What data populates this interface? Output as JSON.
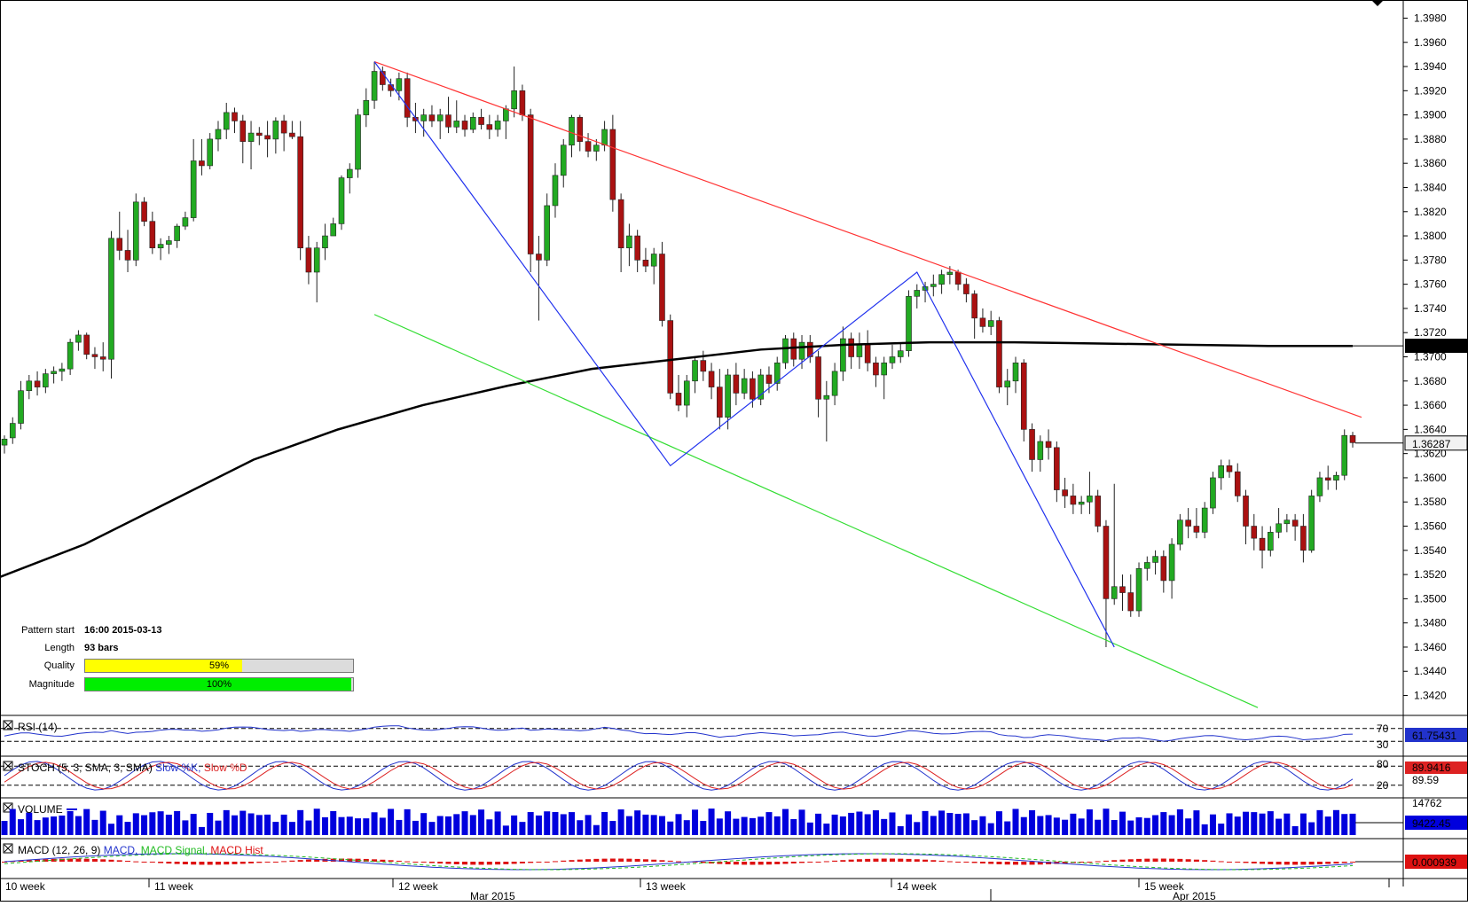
{
  "chart_data": {
    "type": "candlestick",
    "instrument_last_price": "1.36287",
    "ma_label": "1.37091",
    "y_ticks": [
      "1.3980",
      "1.3960",
      "1.3940",
      "1.3920",
      "1.3900",
      "1.3880",
      "1.3860",
      "1.3840",
      "1.3820",
      "1.3800",
      "1.3780",
      "1.3760",
      "1.3740",
      "1.3720",
      "1.3700",
      "1.3680",
      "1.3660",
      "1.3640",
      "1.3620",
      "1.3600",
      "1.3580",
      "1.3560",
      "1.3540",
      "1.3520",
      "1.3500",
      "1.3480",
      "1.3460",
      "1.3440",
      "1.3420"
    ],
    "ylim": [
      1.3405,
      1.3995
    ],
    "week_labels": [
      "10 week",
      "11 week",
      "12 week",
      "13 week",
      "14 week",
      "15 week"
    ],
    "month_labels": [
      "Mar 2015",
      "Apr 2015"
    ],
    "ohlc": [
      [
        1.3627,
        1.3635,
        1.362,
        1.3632
      ],
      [
        1.3633,
        1.365,
        1.3628,
        1.3645
      ],
      [
        1.3645,
        1.368,
        1.364,
        1.3672
      ],
      [
        1.3672,
        1.3685,
        1.3665,
        1.368
      ],
      [
        1.368,
        1.3688,
        1.3668,
        1.3675
      ],
      [
        1.3675,
        1.369,
        1.367,
        1.3686
      ],
      [
        1.3686,
        1.3692,
        1.3678,
        1.3688
      ],
      [
        1.3688,
        1.3695,
        1.368,
        1.369
      ],
      [
        1.369,
        1.3715,
        1.3685,
        1.3712
      ],
      [
        1.3712,
        1.3722,
        1.3705,
        1.3718
      ],
      [
        1.3718,
        1.372,
        1.3698,
        1.3702
      ],
      [
        1.3702,
        1.3708,
        1.369,
        1.37
      ],
      [
        1.37,
        1.3712,
        1.3688,
        1.3698
      ],
      [
        1.3698,
        1.3804,
        1.3682,
        1.3798
      ],
      [
        1.3798,
        1.382,
        1.378,
        1.3788
      ],
      [
        1.3788,
        1.3805,
        1.377,
        1.378
      ],
      [
        1.378,
        1.3835,
        1.3775,
        1.3828
      ],
      [
        1.3828,
        1.3832,
        1.3808,
        1.3812
      ],
      [
        1.3812,
        1.382,
        1.3785,
        1.379
      ],
      [
        1.379,
        1.3798,
        1.378,
        1.3793
      ],
      [
        1.3793,
        1.38,
        1.3785,
        1.3796
      ],
      [
        1.3796,
        1.381,
        1.379,
        1.3808
      ],
      [
        1.3808,
        1.382,
        1.3805,
        1.3815
      ],
      [
        1.3815,
        1.388,
        1.3812,
        1.3862
      ],
      [
        1.3862,
        1.388,
        1.385,
        1.3858
      ],
      [
        1.3858,
        1.3885,
        1.3855,
        1.388
      ],
      [
        1.388,
        1.3895,
        1.387,
        1.3888
      ],
      [
        1.3888,
        1.391,
        1.388,
        1.3902
      ],
      [
        1.3902,
        1.3906,
        1.3885,
        1.3895
      ],
      [
        1.3895,
        1.39,
        1.386,
        1.3878
      ],
      [
        1.3878,
        1.3895,
        1.3855,
        1.3885
      ],
      [
        1.3885,
        1.389,
        1.3875,
        1.3883
      ],
      [
        1.3883,
        1.3895,
        1.3865,
        1.388
      ],
      [
        1.388,
        1.3898,
        1.3868,
        1.3895
      ],
      [
        1.3895,
        1.39,
        1.387,
        1.3885
      ],
      [
        1.3885,
        1.3895,
        1.388,
        1.3882
      ],
      [
        1.3882,
        1.3895,
        1.378,
        1.379
      ],
      [
        1.379,
        1.38,
        1.376,
        1.377
      ],
      [
        1.377,
        1.3795,
        1.3745,
        1.379
      ],
      [
        1.379,
        1.381,
        1.378,
        1.38
      ],
      [
        1.38,
        1.3815,
        1.38,
        1.381
      ],
      [
        1.381,
        1.385,
        1.3805,
        1.3848
      ],
      [
        1.3848,
        1.386,
        1.3835,
        1.3855
      ],
      [
        1.3855,
        1.3905,
        1.3848,
        1.39
      ],
      [
        1.39,
        1.3922,
        1.389,
        1.3912
      ],
      [
        1.3912,
        1.3944,
        1.3905,
        1.3936
      ],
      [
        1.3936,
        1.394,
        1.392,
        1.3925
      ],
      [
        1.3925,
        1.393,
        1.3915,
        1.392
      ],
      [
        1.392,
        1.3935,
        1.3912,
        1.393
      ],
      [
        1.393,
        1.3935,
        1.389,
        1.3898
      ],
      [
        1.3898,
        1.391,
        1.3885,
        1.3895
      ],
      [
        1.3895,
        1.3905,
        1.3882,
        1.39
      ],
      [
        1.39,
        1.3908,
        1.389,
        1.3895
      ],
      [
        1.3895,
        1.3905,
        1.388,
        1.39
      ],
      [
        1.39,
        1.3915,
        1.3885,
        1.389
      ],
      [
        1.389,
        1.3912,
        1.3885,
        1.3895
      ],
      [
        1.3895,
        1.39,
        1.3882,
        1.3888
      ],
      [
        1.3888,
        1.3902,
        1.3885,
        1.3898
      ],
      [
        1.3898,
        1.3905,
        1.3888,
        1.3892
      ],
      [
        1.3892,
        1.39,
        1.388,
        1.3888
      ],
      [
        1.3888,
        1.39,
        1.3882,
        1.3895
      ],
      [
        1.3895,
        1.3908,
        1.388,
        1.3905
      ],
      [
        1.3905,
        1.394,
        1.3898,
        1.392
      ],
      [
        1.392,
        1.3925,
        1.3895,
        1.39
      ],
      [
        1.39,
        1.3905,
        1.377,
        1.3785
      ],
      [
        1.3785,
        1.38,
        1.373,
        1.378
      ],
      [
        1.378,
        1.3835,
        1.3775,
        1.3825
      ],
      [
        1.3825,
        1.386,
        1.3815,
        1.385
      ],
      [
        1.385,
        1.388,
        1.384,
        1.3875
      ],
      [
        1.3875,
        1.39,
        1.3865,
        1.3898
      ],
      [
        1.3898,
        1.39,
        1.387,
        1.3878
      ],
      [
        1.3878,
        1.3885,
        1.3865,
        1.387
      ],
      [
        1.387,
        1.388,
        1.3862,
        1.3875
      ],
      [
        1.3875,
        1.3895,
        1.387,
        1.3888
      ],
      [
        1.3888,
        1.39,
        1.382,
        1.383
      ],
      [
        1.383,
        1.3835,
        1.377,
        1.379
      ],
      [
        1.379,
        1.381,
        1.3775,
        1.38
      ],
      [
        1.38,
        1.3805,
        1.377,
        1.378
      ],
      [
        1.378,
        1.379,
        1.377,
        1.3775
      ],
      [
        1.3775,
        1.379,
        1.376,
        1.3785
      ],
      [
        1.3785,
        1.3795,
        1.3725,
        1.373
      ],
      [
        1.373,
        1.3735,
        1.3665,
        1.367
      ],
      [
        1.367,
        1.3685,
        1.3655,
        1.366
      ],
      [
        1.366,
        1.3685,
        1.365,
        1.368
      ],
      [
        1.368,
        1.37,
        1.367,
        1.3697
      ],
      [
        1.3697,
        1.3705,
        1.368,
        1.3688
      ],
      [
        1.3688,
        1.3695,
        1.3665,
        1.3675
      ],
      [
        1.3675,
        1.369,
        1.364,
        1.365
      ],
      [
        1.365,
        1.369,
        1.364,
        1.3685
      ],
      [
        1.3685,
        1.3695,
        1.366,
        1.367
      ],
      [
        1.367,
        1.369,
        1.3665,
        1.3682
      ],
      [
        1.3682,
        1.3688,
        1.3658,
        1.3665
      ],
      [
        1.3665,
        1.369,
        1.366,
        1.3685
      ],
      [
        1.3685,
        1.3692,
        1.367,
        1.3678
      ],
      [
        1.3678,
        1.37,
        1.3672,
        1.3695
      ],
      [
        1.3695,
        1.3718,
        1.369,
        1.3715
      ],
      [
        1.3715,
        1.372,
        1.3692,
        1.3698
      ],
      [
        1.3698,
        1.3718,
        1.369,
        1.3712
      ],
      [
        1.3712,
        1.3718,
        1.3695,
        1.37
      ],
      [
        1.37,
        1.3705,
        1.365,
        1.3665
      ],
      [
        1.3665,
        1.368,
        1.363,
        1.3668
      ],
      [
        1.3668,
        1.3695,
        1.366,
        1.3688
      ],
      [
        1.3688,
        1.3725,
        1.368,
        1.3715
      ],
      [
        1.3715,
        1.372,
        1.369,
        1.37
      ],
      [
        1.37,
        1.372,
        1.369,
        1.371
      ],
      [
        1.371,
        1.3722,
        1.3688,
        1.3695
      ],
      [
        1.3695,
        1.37,
        1.3675,
        1.3685
      ],
      [
        1.3685,
        1.37,
        1.3665,
        1.3695
      ],
      [
        1.3695,
        1.371,
        1.369,
        1.37
      ],
      [
        1.37,
        1.3712,
        1.3695,
        1.3705
      ],
      [
        1.3705,
        1.3755,
        1.37,
        1.375
      ],
      [
        1.375,
        1.376,
        1.374,
        1.3755
      ],
      [
        1.3755,
        1.3762,
        1.3745,
        1.3758
      ],
      [
        1.3758,
        1.3768,
        1.375,
        1.376
      ],
      [
        1.376,
        1.3772,
        1.3752,
        1.3768
      ],
      [
        1.3768,
        1.3775,
        1.376,
        1.377
      ],
      [
        1.377,
        1.3772,
        1.3755,
        1.376
      ],
      [
        1.376,
        1.3765,
        1.3745,
        1.3752
      ],
      [
        1.3752,
        1.3755,
        1.3715,
        1.3732
      ],
      [
        1.3732,
        1.374,
        1.372,
        1.3725
      ],
      [
        1.3725,
        1.3738,
        1.3718,
        1.373
      ],
      [
        1.373,
        1.3733,
        1.367,
        1.3675
      ],
      [
        1.3675,
        1.369,
        1.366,
        1.368
      ],
      [
        1.368,
        1.37,
        1.367,
        1.3695
      ],
      [
        1.3695,
        1.3698,
        1.363,
        1.364
      ],
      [
        1.364,
        1.3645,
        1.3605,
        1.3615
      ],
      [
        1.3615,
        1.3635,
        1.3605,
        1.363
      ],
      [
        1.363,
        1.364,
        1.3615,
        1.3625
      ],
      [
        1.3625,
        1.363,
        1.358,
        1.359
      ],
      [
        1.359,
        1.36,
        1.3575,
        1.3585
      ],
      [
        1.3585,
        1.3595,
        1.357,
        1.3578
      ],
      [
        1.3578,
        1.3585,
        1.357,
        1.358
      ],
      [
        1.358,
        1.3605,
        1.357,
        1.3585
      ],
      [
        1.3585,
        1.359,
        1.3555,
        1.356
      ],
      [
        1.356,
        1.3565,
        1.346,
        1.35
      ],
      [
        1.35,
        1.3595,
        1.3495,
        1.351
      ],
      [
        1.351,
        1.352,
        1.349,
        1.3505
      ],
      [
        1.3505,
        1.352,
        1.3485,
        1.349
      ],
      [
        1.349,
        1.353,
        1.3485,
        1.3525
      ],
      [
        1.3525,
        1.3535,
        1.3515,
        1.353
      ],
      [
        1.353,
        1.354,
        1.352,
        1.3535
      ],
      [
        1.3535,
        1.354,
        1.3505,
        1.3515
      ],
      [
        1.3515,
        1.355,
        1.35,
        1.3545
      ],
      [
        1.3545,
        1.357,
        1.354,
        1.3565
      ],
      [
        1.3565,
        1.3575,
        1.355,
        1.356
      ],
      [
        1.356,
        1.3575,
        1.355,
        1.3555
      ],
      [
        1.3555,
        1.358,
        1.355,
        1.3575
      ],
      [
        1.3575,
        1.3605,
        1.357,
        1.36
      ],
      [
        1.36,
        1.3615,
        1.359,
        1.361
      ],
      [
        1.361,
        1.3615,
        1.36,
        1.3605
      ],
      [
        1.3605,
        1.3612,
        1.358,
        1.3585
      ],
      [
        1.3585,
        1.359,
        1.3545,
        1.356
      ],
      [
        1.356,
        1.357,
        1.354,
        1.355
      ],
      [
        1.355,
        1.356,
        1.3525,
        1.354
      ],
      [
        1.354,
        1.356,
        1.3535,
        1.3555
      ],
      [
        1.3555,
        1.3575,
        1.355,
        1.3562
      ],
      [
        1.3562,
        1.357,
        1.3555,
        1.3565
      ],
      [
        1.3565,
        1.357,
        1.3548,
        1.356
      ],
      [
        1.356,
        1.357,
        1.353,
        1.354
      ],
      [
        1.354,
        1.359,
        1.3538,
        1.3585
      ],
      [
        1.3585,
        1.3605,
        1.358,
        1.36
      ],
      [
        1.36,
        1.361,
        1.359,
        1.3598
      ],
      [
        1.3598,
        1.3605,
        1.359,
        1.3602
      ],
      [
        1.3602,
        1.364,
        1.3598,
        1.3635
      ],
      [
        1.3635,
        1.3638,
        1.3625,
        1.3629
      ]
    ],
    "ma_values": [
      1.3518,
      1.3545,
      1.358,
      1.3615,
      1.364,
      1.366,
      1.3676,
      1.369,
      1.3698,
      1.3706,
      1.371,
      1.3712,
      1.3712,
      1.3711,
      1.371,
      1.3709,
      1.3709
    ],
    "pattern_lines": {
      "resistance": [
        [
          1.3944
        ],
        [
          1.365
        ]
      ],
      "support": [
        [
          1.373
        ],
        [
          1.342
        ]
      ]
    },
    "indicators": {
      "rsi": {
        "label": "RSI (14)",
        "value": "61.75431",
        "levels": [
          "70",
          "30"
        ]
      },
      "stoch": {
        "label": "STOCH (5, 3, SMA, 3, SMA)",
        "k_label": "Slow %K",
        "d_label": "Slow %D",
        "value": "89.9416",
        "second_value": "89.59",
        "levels": [
          "80",
          "20"
        ]
      },
      "volume": {
        "label": "VOLUME",
        "value": "9422.45",
        "top_value": "14762"
      },
      "macd": {
        "label": "MACD (12, 26, 9)",
        "macd_label": "MACD",
        "signal_label": "MACD Signal",
        "hist_label": "MACD Hist",
        "value": "0.000939"
      }
    },
    "colors": {
      "bull": "#22aa22",
      "bear": "#aa1111",
      "resistance": "#ff3333",
      "support": "#33dd33",
      "zigzag": "#2233ee",
      "ma": "#000000"
    }
  },
  "pattern_info": {
    "start_label": "Pattern start",
    "start_value": "16:00 2015-03-13",
    "length_label": "Length",
    "length_value": "93 bars",
    "quality_label": "Quality",
    "quality_value": "59%",
    "quality_fraction": 0.59,
    "magnitude_label": "Magnitude",
    "magnitude_value": "100%",
    "magnitude_fraction": 1.0
  }
}
